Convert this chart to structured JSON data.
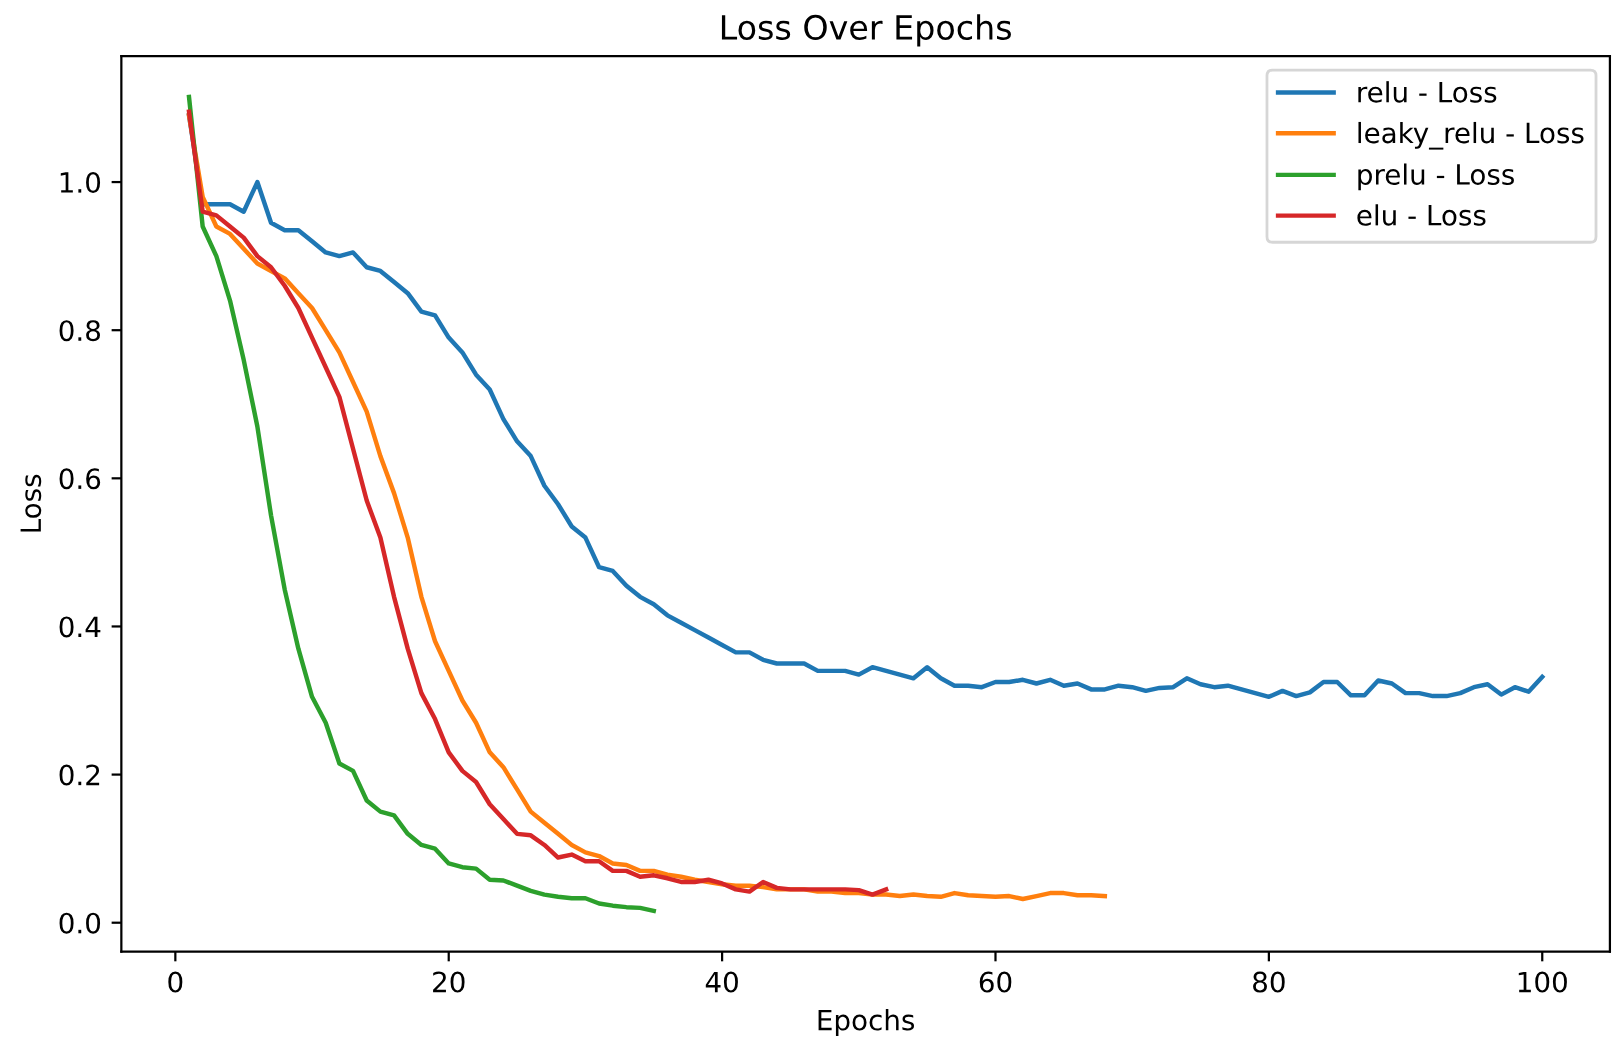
{
  "chart_data": {
    "type": "line",
    "title": "Loss Over Epochs",
    "xlabel": "Epochs",
    "ylabel": "Loss",
    "xlim": [
      -3.95,
      104.95
    ],
    "ylim": [
      -0.039,
      1.17
    ],
    "xticks": [
      0,
      20,
      40,
      60,
      80,
      100
    ],
    "yticks": [
      {
        "value": 0,
        "label": "0.0"
      },
      {
        "value": 0.2,
        "label": "0.2"
      },
      {
        "value": 0.4,
        "label": "0.4"
      },
      {
        "value": 0.6,
        "label": "0.6"
      },
      {
        "value": 0.8,
        "label": "0.8"
      },
      {
        "value": 1.0,
        "label": "1.0"
      }
    ],
    "grid": false,
    "legend": "top right",
    "marker": "none",
    "line_style": "solid",
    "series": [
      {
        "name": "relu - Loss",
        "color": "#1f77b4",
        "x": [
          1,
          2,
          3,
          4,
          5,
          6,
          7,
          8,
          9,
          10,
          11,
          12,
          13,
          14,
          15,
          16,
          17,
          18,
          19,
          20,
          21,
          22,
          23,
          24,
          25,
          26,
          27,
          28,
          29,
          30,
          31,
          32,
          33,
          34,
          35,
          36,
          37,
          38,
          39,
          40,
          41,
          42,
          43,
          44,
          45,
          46,
          47,
          48,
          49,
          50,
          51,
          52,
          53,
          54,
          55,
          56,
          57,
          58,
          59,
          60,
          61,
          62,
          63,
          64,
          65,
          66,
          67,
          68,
          69,
          70,
          71,
          72,
          73,
          74,
          75,
          76,
          77,
          78,
          79,
          80,
          81,
          82,
          83,
          84,
          85,
          86,
          87,
          88,
          89,
          90,
          91,
          92,
          93,
          94,
          95,
          96,
          97,
          98,
          99,
          100
        ],
        "values": [
          1.09,
          0.97,
          0.97,
          0.97,
          0.96,
          1.0,
          0.945,
          0.935,
          0.935,
          0.92,
          0.905,
          0.9,
          0.905,
          0.885,
          0.88,
          0.865,
          0.85,
          0.825,
          0.82,
          0.79,
          0.77,
          0.74,
          0.72,
          0.68,
          0.65,
          0.63,
          0.59,
          0.565,
          0.535,
          0.52,
          0.48,
          0.475,
          0.455,
          0.44,
          0.43,
          0.415,
          0.405,
          0.395,
          0.385,
          0.375,
          0.365,
          0.365,
          0.355,
          0.35,
          0.35,
          0.35,
          0.34,
          0.34,
          0.34,
          0.335,
          0.345,
          0.34,
          0.335,
          0.33,
          0.345,
          0.33,
          0.32,
          0.32,
          0.318,
          0.325,
          0.325,
          0.328,
          0.323,
          0.328,
          0.32,
          0.323,
          0.315,
          0.315,
          0.32,
          0.318,
          0.313,
          0.317,
          0.318,
          0.33,
          0.322,
          0.318,
          0.32,
          0.315,
          0.31,
          0.305,
          0.313,
          0.306,
          0.311,
          0.325,
          0.325,
          0.307,
          0.307,
          0.327,
          0.323,
          0.31,
          0.31,
          0.306,
          0.306,
          0.31,
          0.318,
          0.322,
          0.308,
          0.318,
          0.312,
          0.332
        ]
      },
      {
        "name": "leaky_relu - Loss",
        "color": "#ff7f0e",
        "x": [
          1,
          2,
          3,
          4,
          5,
          6,
          7,
          8,
          9,
          10,
          11,
          12,
          13,
          14,
          15,
          16,
          17,
          18,
          19,
          20,
          21,
          22,
          23,
          24,
          25,
          26,
          27,
          28,
          29,
          30,
          31,
          32,
          33,
          34,
          35,
          36,
          37,
          38,
          39,
          40,
          41,
          42,
          43,
          44,
          45,
          46,
          47,
          48,
          49,
          50,
          51,
          52,
          53,
          54,
          55,
          56,
          57,
          58,
          59,
          60,
          61,
          62,
          63,
          64,
          65,
          66,
          67,
          68
        ],
        "values": [
          1.09,
          0.98,
          0.94,
          0.93,
          0.91,
          0.89,
          0.88,
          0.87,
          0.85,
          0.83,
          0.8,
          0.77,
          0.73,
          0.69,
          0.63,
          0.58,
          0.52,
          0.44,
          0.38,
          0.34,
          0.3,
          0.27,
          0.23,
          0.21,
          0.18,
          0.15,
          0.135,
          0.12,
          0.105,
          0.095,
          0.09,
          0.08,
          0.078,
          0.07,
          0.07,
          0.065,
          0.062,
          0.058,
          0.055,
          0.052,
          0.05,
          0.05,
          0.048,
          0.045,
          0.045,
          0.045,
          0.042,
          0.042,
          0.04,
          0.04,
          0.038,
          0.038,
          0.036,
          0.038,
          0.036,
          0.035,
          0.04,
          0.037,
          0.036,
          0.035,
          0.036,
          0.032,
          0.036,
          0.04,
          0.04,
          0.037,
          0.037,
          0.036
        ]
      },
      {
        "name": "prelu - Loss",
        "color": "#2ca02c",
        "x": [
          1,
          2,
          3,
          4,
          5,
          6,
          7,
          8,
          9,
          10,
          11,
          12,
          13,
          14,
          15,
          16,
          17,
          18,
          19,
          20,
          21,
          22,
          23,
          24,
          25,
          26,
          27,
          28,
          29,
          30,
          31,
          32,
          33,
          34,
          35
        ],
        "values": [
          1.115,
          0.94,
          0.9,
          0.84,
          0.76,
          0.67,
          0.55,
          0.45,
          0.37,
          0.305,
          0.27,
          0.215,
          0.205,
          0.165,
          0.15,
          0.145,
          0.12,
          0.105,
          0.1,
          0.08,
          0.075,
          0.073,
          0.058,
          0.057,
          0.05,
          0.043,
          0.038,
          0.035,
          0.033,
          0.033,
          0.026,
          0.023,
          0.021,
          0.02,
          0.016
        ]
      },
      {
        "name": "elu - Loss",
        "color": "#d62728",
        "x": [
          1,
          2,
          3,
          4,
          5,
          6,
          7,
          8,
          9,
          10,
          11,
          12,
          13,
          14,
          15,
          16,
          17,
          18,
          19,
          20,
          21,
          22,
          23,
          24,
          25,
          26,
          27,
          28,
          29,
          30,
          31,
          32,
          33,
          34,
          35,
          36,
          37,
          38,
          39,
          40,
          41,
          42,
          43,
          44,
          45,
          46,
          47,
          48,
          49,
          50,
          51,
          52
        ],
        "values": [
          1.095,
          0.96,
          0.955,
          0.94,
          0.925,
          0.9,
          0.885,
          0.86,
          0.83,
          0.79,
          0.75,
          0.71,
          0.64,
          0.57,
          0.52,
          0.44,
          0.37,
          0.31,
          0.275,
          0.23,
          0.205,
          0.19,
          0.16,
          0.14,
          0.12,
          0.118,
          0.105,
          0.088,
          0.092,
          0.083,
          0.083,
          0.07,
          0.07,
          0.062,
          0.064,
          0.06,
          0.055,
          0.055,
          0.058,
          0.053,
          0.045,
          0.042,
          0.055,
          0.047,
          0.045,
          0.045,
          0.045,
          0.045,
          0.045,
          0.044,
          0.038,
          0.045
        ]
      }
    ]
  }
}
